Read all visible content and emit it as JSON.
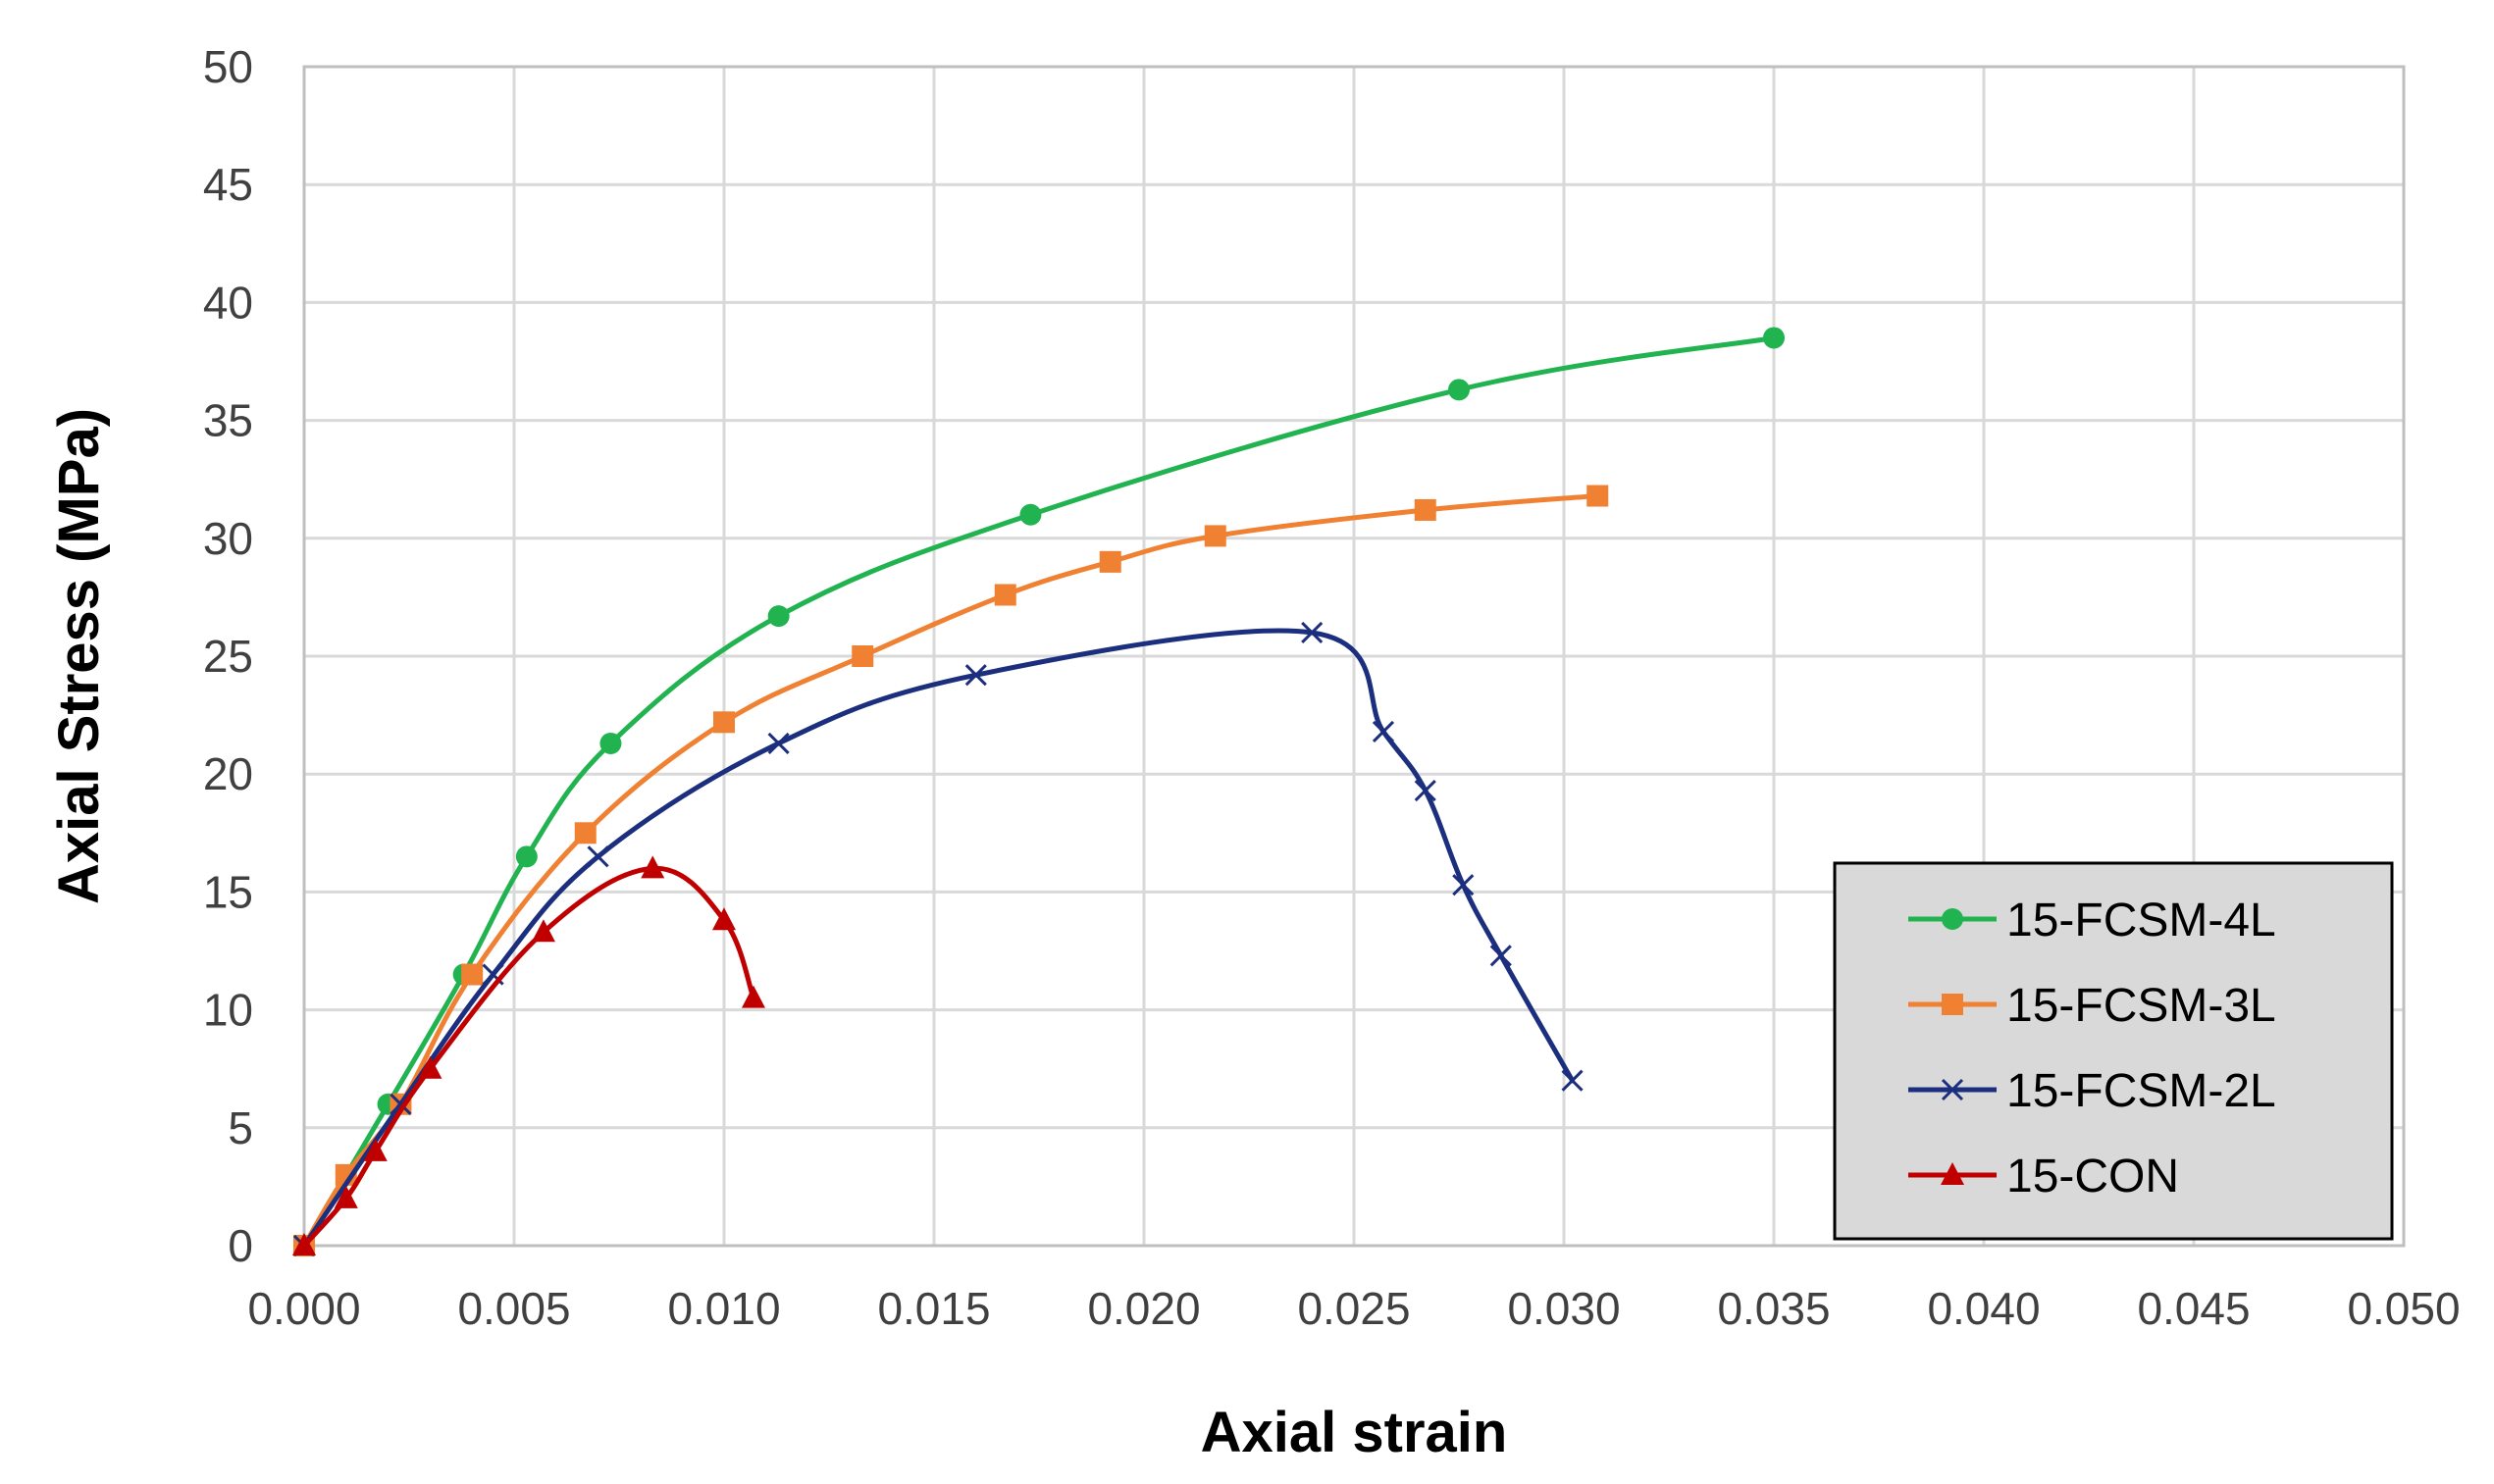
{
  "chart_data": {
    "type": "line",
    "title": "",
    "xlabel": "Axial strain",
    "ylabel": "Axial Stress (MPa)",
    "xlim": [
      0,
      0.05
    ],
    "ylim": [
      0,
      50
    ],
    "x_ticks": [
      0,
      0.005,
      0.01,
      0.015,
      0.02,
      0.025,
      0.03,
      0.035,
      0.04,
      0.045,
      0.05
    ],
    "x_tick_labels": [
      "0.000",
      "0.005",
      "0.010",
      "0.015",
      "0.020",
      "0.025",
      "0.030",
      "0.035",
      "0.040",
      "0.045",
      "0.050"
    ],
    "y_ticks": [
      0,
      5,
      10,
      15,
      20,
      25,
      30,
      35,
      40,
      45,
      50
    ],
    "y_tick_labels": [
      "0",
      "5",
      "10",
      "15",
      "20",
      "25",
      "30",
      "35",
      "40",
      "45",
      "50"
    ],
    "grid": true,
    "legend_position": "bottom-right",
    "series": [
      {
        "name": "15-FCSM-4L",
        "color": "#21b350",
        "marker": "circle",
        "points": [
          [
            0,
            0
          ],
          [
            0.002,
            6.0
          ],
          [
            0.0038,
            11.5
          ],
          [
            0.0053,
            16.5
          ],
          [
            0.0073,
            21.3
          ],
          [
            0.0113,
            26.7
          ],
          [
            0.0173,
            31.0
          ],
          [
            0.0275,
            36.3
          ],
          [
            0.035,
            38.5
          ]
        ]
      },
      {
        "name": "15-FCSM-3L",
        "color": "#f08132",
        "marker": "square",
        "points": [
          [
            0,
            0
          ],
          [
            0.001,
            3.0
          ],
          [
            0.0023,
            6.0
          ],
          [
            0.004,
            11.5
          ],
          [
            0.0067,
            17.5
          ],
          [
            0.01,
            22.2
          ],
          [
            0.0133,
            25.0
          ],
          [
            0.0167,
            27.6
          ],
          [
            0.0192,
            29.0
          ],
          [
            0.0217,
            30.1
          ],
          [
            0.0267,
            31.2
          ],
          [
            0.0308,
            31.8
          ]
        ]
      },
      {
        "name": "15-FCSM-2L",
        "color": "#1b2f7e",
        "marker": "x",
        "points": [
          [
            0,
            0
          ],
          [
            0.0023,
            6.0
          ],
          [
            0.0045,
            11.5
          ],
          [
            0.007,
            16.5
          ],
          [
            0.0113,
            21.3
          ],
          [
            0.016,
            24.2
          ],
          [
            0.024,
            26.0
          ],
          [
            0.0257,
            21.8
          ],
          [
            0.0267,
            19.3
          ],
          [
            0.0276,
            15.3
          ],
          [
            0.0285,
            12.3
          ],
          [
            0.0302,
            7.0
          ]
        ]
      },
      {
        "name": "15-CON",
        "color": "#c00000",
        "marker": "triangle",
        "points": [
          [
            0,
            0
          ],
          [
            0.001,
            2.0
          ],
          [
            0.0017,
            4.0
          ],
          [
            0.003,
            7.5
          ],
          [
            0.0057,
            13.3
          ],
          [
            0.0083,
            16.0
          ],
          [
            0.01,
            13.8
          ],
          [
            0.0107,
            10.5
          ]
        ]
      }
    ]
  }
}
